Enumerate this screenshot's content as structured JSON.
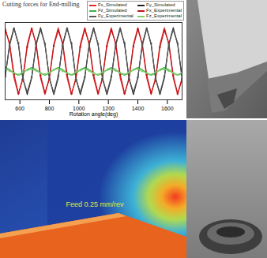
{
  "chart_data": {
    "type": "line",
    "title": "Cutting forces for End-milling",
    "x_label": "Rotation angle(deg)",
    "x": [
      500,
      530,
      560,
      590,
      620,
      650,
      680,
      710,
      740,
      770,
      800,
      830,
      860,
      890,
      920,
      950,
      980,
      1010,
      1040,
      1070,
      1100,
      1130,
      1160,
      1190,
      1220,
      1250,
      1280,
      1310,
      1340,
      1370,
      1400,
      1430,
      1460,
      1490,
      1520,
      1550,
      1580,
      1610,
      1640,
      1670,
      1700
    ],
    "xlim": [
      500,
      1700
    ],
    "xticks": [
      600,
      800,
      1000,
      1200,
      1400,
      1600
    ],
    "ylim": [
      -1500,
      1500
    ],
    "tick_labels": "x",
    "grid": false,
    "legend": "top-right",
    "series": [
      {
        "name": "Fx_Simulated",
        "color": "#e8262a",
        "marker": "none",
        "line_style": "solid",
        "values": [
          1300,
          650,
          -650,
          -1300,
          -650,
          650,
          1300,
          650,
          -650,
          -1300,
          -650,
          650,
          1300,
          650,
          -650,
          -1300,
          -650,
          650,
          1300,
          650,
          -650,
          -1300,
          -650,
          650,
          1300,
          650,
          -650,
          -1300,
          -650,
          650,
          1300,
          650,
          -650,
          -1300,
          -650,
          650,
          1300,
          650,
          -650,
          -1300,
          -650
        ]
      },
      {
        "name": "Fy_Simulated",
        "color": "#222222",
        "marker": "none",
        "line_style": "solid",
        "values": [
          -650,
          650,
          1300,
          650,
          -650,
          -1300,
          -650,
          650,
          1300,
          650,
          -650,
          -1300,
          -650,
          650,
          1300,
          650,
          -650,
          -1300,
          -650,
          650,
          1300,
          650,
          -650,
          -1300,
          -650,
          650,
          1300,
          650,
          -650,
          -1300,
          -650,
          650,
          1300,
          650,
          -650,
          -1300,
          -650,
          650,
          1300,
          650,
          -650
        ]
      },
      {
        "name": "Fz_Simulated",
        "color": "#3cb043",
        "marker": "none",
        "line_style": "solid",
        "values": [
          -250,
          -325,
          -475,
          -550,
          -475,
          -325,
          -250,
          -325,
          -475,
          -550,
          -475,
          -325,
          -250,
          -325,
          -475,
          -550,
          -475,
          -325,
          -250,
          -325,
          -475,
          -550,
          -475,
          -325,
          -250,
          -325,
          -475,
          -550,
          -475,
          -325,
          -250,
          -325,
          -475,
          -550,
          -475,
          -325,
          -250,
          -325,
          -475,
          -550,
          -475
        ]
      },
      {
        "name": "Fx_Experimental",
        "color": "#c0161a",
        "marker": "circle",
        "line_style": "solid",
        "values": [
          1200,
          700,
          -500,
          -1250,
          -700,
          550,
          1250,
          680,
          -560,
          -1220,
          -690,
          600,
          1180,
          720,
          -520,
          -1260,
          -710,
          560,
          1230,
          690,
          -540,
          -1240,
          -680,
          580,
          1210,
          700,
          -510,
          -1250,
          -700,
          570,
          1240,
          660,
          -530,
          -1230,
          -720,
          550,
          1200,
          710,
          -560,
          -1260,
          -690
        ]
      },
      {
        "name": "Fy_Experimental",
        "color": "#555555",
        "marker": "circle",
        "line_style": "solid",
        "values": [
          -600,
          600,
          1250,
          700,
          -700,
          -1200,
          -620,
          640,
          1220,
          680,
          -680,
          -1230,
          -580,
          610,
          1260,
          690,
          -710,
          -1210,
          -610,
          630,
          1240,
          670,
          -690,
          -1220,
          -600,
          620,
          1230,
          700,
          -700,
          -1200,
          -630,
          600,
          1250,
          680,
          -680,
          -1240,
          -590,
          640,
          1220,
          690,
          -700
        ]
      },
      {
        "name": "Fz_Experimental",
        "color": "#7ccf6a",
        "marker": "circle",
        "line_style": "solid",
        "values": [
          -300,
          -380,
          -450,
          -520,
          -430,
          -350,
          -310,
          -370,
          -460,
          -510,
          -440,
          -340,
          -290,
          -390,
          -450,
          -530,
          -420,
          -360,
          -300,
          -380,
          -470,
          -520,
          -430,
          -350,
          -320,
          -370,
          -450,
          -510,
          -440,
          -340,
          -300,
          -390,
          -460,
          -520,
          -430,
          -350,
          -310,
          -380,
          -450,
          -530,
          -440
        ]
      }
    ]
  },
  "panels": {
    "heat_map": {
      "annotation": "Feed 0.25 mm/rev"
    }
  }
}
